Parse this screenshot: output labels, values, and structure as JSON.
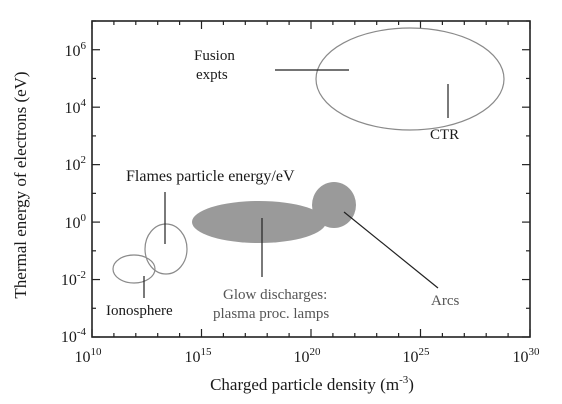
{
  "colors": {
    "ink": "#1a1a1a",
    "frame": "#222222",
    "region_fill": "#9a9a9a",
    "outline": "#8a8a8a",
    "gray_text": "#555555"
  },
  "chart_data": {
    "type": "scatter",
    "title": "",
    "xlabel": "Charged particle density (m",
    "xlabel_sup": "-3",
    "xlabel_close": ")",
    "ylabel": "Thermal energy of electrons (eV)",
    "x_scale": "log",
    "y_scale": "log",
    "xlim": [
      10000000000.0,
      1e+30
    ],
    "ylim": [
      0.0001,
      10000000.0
    ],
    "grid": false,
    "x_ticks": [
      {
        "base": "10",
        "exp": "10",
        "value": 10000000000.0
      },
      {
        "base": "10",
        "exp": "15",
        "value": 1000000000000000.0
      },
      {
        "base": "10",
        "exp": "20",
        "value": 1e+20
      },
      {
        "base": "10",
        "exp": "25",
        "value": 1e+25
      },
      {
        "base": "10",
        "exp": "30",
        "value": 1e+30
      }
    ],
    "y_ticks": [
      {
        "base": "10",
        "exp": "-4",
        "value": 0.0001
      },
      {
        "base": "10",
        "exp": "-2",
        "value": 0.01
      },
      {
        "base": "10",
        "exp": "0",
        "value": 1
      },
      {
        "base": "10",
        "exp": "2",
        "value": 100.0
      },
      {
        "base": "10",
        "exp": "4",
        "value": 10000.0
      },
      {
        "base": "10",
        "exp": "6",
        "value": 1000000.0
      }
    ],
    "regions": [
      {
        "label_lines": [
          "Fusion",
          "expts"
        ],
        "style": "outline",
        "x_range": [
          1e+17,
          1e+20
        ],
        "y_range": [
          2000.0,
          100000.0
        ]
      },
      {
        "label_lines": [
          "CTR"
        ],
        "style": "outline",
        "x_range": [
          1e+20,
          1e+30
        ],
        "y_range": [
          3000.0,
          100000.0
        ]
      },
      {
        "label_lines": [
          "Flames particle energy/eV"
        ],
        "style": "outline",
        "x_range": [
          100000000000000.0,
          1000000000000000.0
        ],
        "y_range": [
          0.005,
          0.5
        ]
      },
      {
        "label_lines": [
          "Ionosphere"
        ],
        "style": "outline",
        "x_range": [
          1000000000000.0,
          100000000000000.0
        ],
        "y_range": [
          0.004,
          0.03
        ]
      },
      {
        "label_lines": [
          "Glow discharges:",
          "plasma proc. lamps"
        ],
        "style": "filled",
        "x_range": [
          1000000000000000.0,
          1e+21
        ],
        "y_range": [
          0.1,
          3
        ]
      },
      {
        "label_lines": [
          "Arcs"
        ],
        "style": "filled",
        "x_range": [
          1e+20,
          1e+22
        ],
        "y_range": [
          0.3,
          20
        ]
      }
    ]
  }
}
